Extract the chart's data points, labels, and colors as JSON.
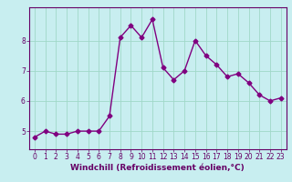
{
  "x": [
    0,
    1,
    2,
    3,
    4,
    5,
    6,
    7,
    8,
    9,
    10,
    11,
    12,
    13,
    14,
    15,
    16,
    17,
    18,
    19,
    20,
    21,
    22,
    23
  ],
  "y": [
    4.8,
    5.0,
    4.9,
    4.9,
    5.0,
    5.0,
    5.0,
    5.5,
    8.1,
    8.5,
    8.1,
    8.7,
    7.1,
    6.7,
    7.0,
    8.0,
    7.5,
    7.2,
    6.8,
    6.9,
    6.6,
    6.2,
    6.0,
    6.1
  ],
  "line_color": "#800080",
  "marker": "D",
  "markersize": 2.5,
  "linewidth": 1.0,
  "background_color": "#c8eef0",
  "grid_color": "#a0d8c8",
  "xlabel": "Windchill (Refroidissement éolien,°C)",
  "xlabel_fontsize": 6.5,
  "xlim": [
    -0.5,
    23.5
  ],
  "ylim": [
    4.4,
    9.1
  ],
  "yticks": [
    5,
    6,
    7,
    8
  ],
  "xticks": [
    0,
    1,
    2,
    3,
    4,
    5,
    6,
    7,
    8,
    9,
    10,
    11,
    12,
    13,
    14,
    15,
    16,
    17,
    18,
    19,
    20,
    21,
    22,
    23
  ],
  "tick_fontsize": 5.5,
  "axis_color": "#660066",
  "spine_color": "#660066"
}
